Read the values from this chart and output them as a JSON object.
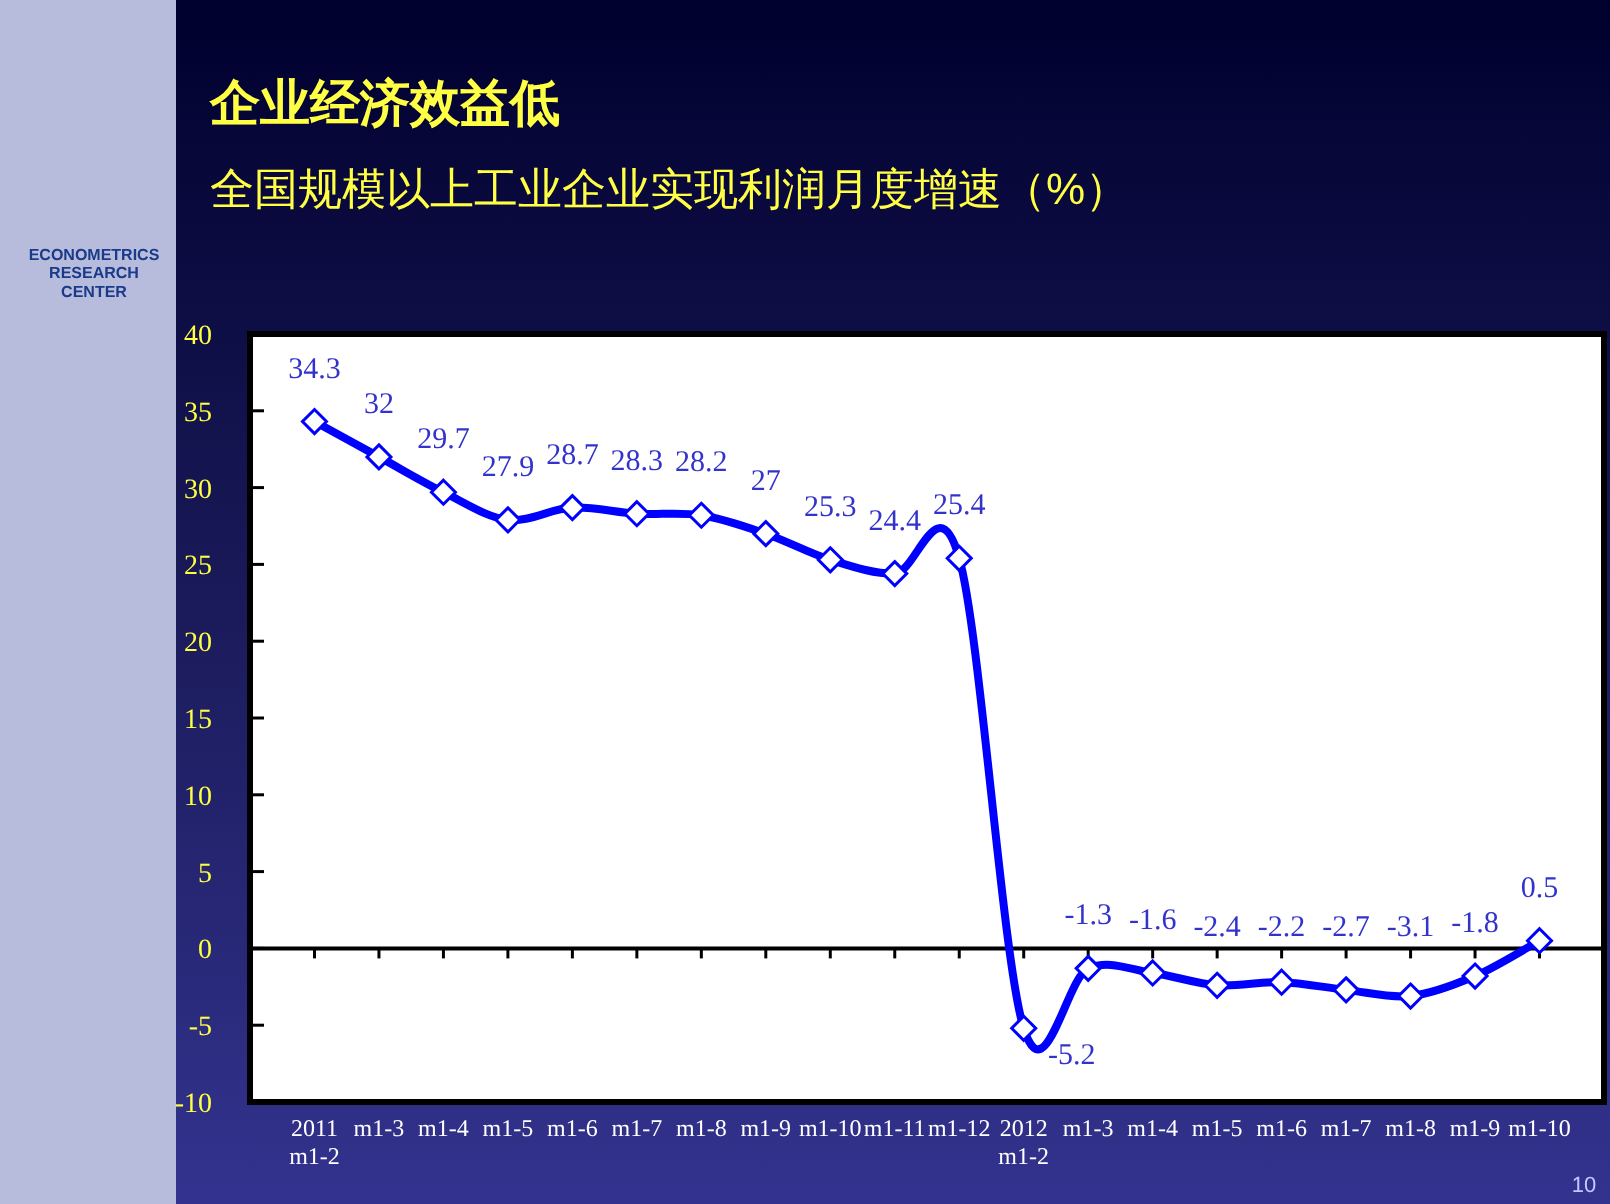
{
  "chart_data": {
    "type": "line",
    "title": "企业经济效益低",
    "subtitle": "全国规模以上工业企业实现利润月度增速（%）",
    "categories": [
      "2011\nm1-2",
      "m1-3",
      "m1-4",
      "m1-5",
      "m1-6",
      "m1-7",
      "m1-8",
      "m1-9",
      "m1-10",
      "m1-11",
      "m1-12",
      "2012\nm1-2",
      "m1-3",
      "m1-4",
      "m1-5",
      "m1-6",
      "m1-7",
      "m1-8",
      "m1-9",
      "m1-10"
    ],
    "series": [
      {
        "color": "#0000ff",
        "values": [
          34.3,
          32,
          29.7,
          27.9,
          28.7,
          28.3,
          28.2,
          27,
          25.3,
          24.4,
          25.4,
          -5.2,
          -1.3,
          -1.6,
          -2.4,
          -2.2,
          -2.7,
          -3.1,
          -1.8,
          0.5
        ]
      }
    ],
    "ylim": [
      -10,
      40
    ],
    "yticks": [
      -10,
      -5,
      0,
      5,
      10,
      15,
      20,
      25,
      30,
      35,
      40
    ],
    "marker": "diamond",
    "line_style": "solid",
    "data_labels": true,
    "annotations": [
      "ECONOMETRICS\nRESEARCH\nCENTER",
      "10"
    ]
  }
}
